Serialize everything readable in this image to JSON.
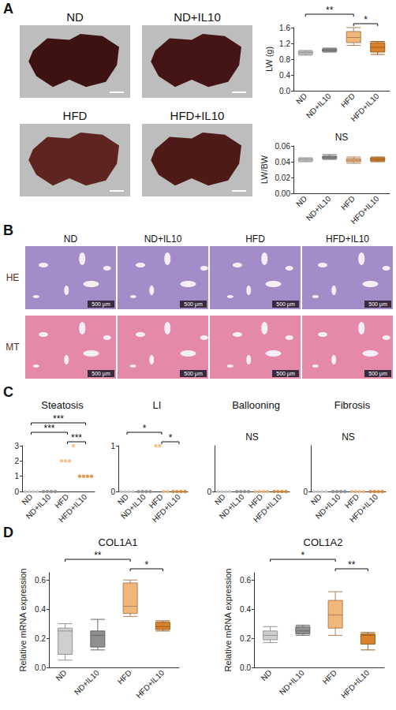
{
  "panel_labels": [
    "A",
    "B",
    "C",
    "D"
  ],
  "photos_A": {
    "labels": [
      "ND",
      "ND+IL10",
      "HFD",
      "HFD+IL10"
    ]
  },
  "histology_B": {
    "columns": [
      "ND",
      "ND+IL10",
      "HFD",
      "HFD+IL10"
    ],
    "rows": [
      "HE",
      "MT"
    ],
    "scale_bar": "500 μm"
  },
  "chart_data": [
    {
      "type": "boxplot",
      "ylabel": "LW (g)",
      "categories": [
        "ND",
        "ND+IL10",
        "HFD",
        "HFD+IL10"
      ],
      "values": [
        [
          0.9,
          0.93,
          0.97,
          1.0,
          1.02
        ],
        [
          0.98,
          1.0,
          1.02,
          1.06,
          1.08
        ],
        [
          1.15,
          1.22,
          1.35,
          1.5,
          1.6
        ],
        [
          0.92,
          0.98,
          1.1,
          1.22,
          1.25
        ]
      ],
      "colors": [
        "#cfcfcf",
        "#8f8f8f",
        "#f2b57a",
        "#d9822b"
      ],
      "ylim": [
        0,
        1.6
      ],
      "yticks": [
        {
          "value": 0,
          "label": "0.0"
        },
        {
          "value": 0.4,
          "label": "0.4"
        },
        {
          "value": 0.8,
          "label": "0.8"
        },
        {
          "value": 1.2,
          "label": "1.2"
        },
        {
          "value": 1.6,
          "label": "1.6"
        }
      ],
      "annotations": [
        {
          "from": "ND",
          "to": "HFD",
          "text": "**"
        },
        {
          "from": "HFD",
          "to": "HFD+IL10",
          "text": "*"
        }
      ],
      "grid": false
    },
    {
      "type": "boxplot",
      "ylabel": "LW/BW",
      "categories": [
        "ND",
        "ND+IL10",
        "HFD",
        "HFD+IL10"
      ],
      "values": [
        [
          0.04,
          0.041,
          0.043,
          0.044,
          0.045
        ],
        [
          0.043,
          0.044,
          0.046,
          0.047,
          0.049
        ],
        [
          0.038,
          0.04,
          0.042,
          0.044,
          0.046
        ],
        [
          0.04,
          0.041,
          0.043,
          0.045,
          0.046
        ]
      ],
      "colors": [
        "#cfcfcf",
        "#8f8f8f",
        "#f2b57a",
        "#d9822b"
      ],
      "ylim": [
        0,
        0.06
      ],
      "yticks": [
        {
          "value": 0,
          "label": "0.00"
        },
        {
          "value": 0.02,
          "label": "0.02"
        },
        {
          "value": 0.04,
          "label": "0.04"
        },
        {
          "value": 0.06,
          "label": "0.06"
        }
      ],
      "annotations": [
        {
          "text": "NS"
        }
      ],
      "grid": false
    },
    {
      "type": "scatter",
      "title": "Steatosis",
      "categories": [
        "ND",
        "ND+IL10",
        "HFD",
        "HFD+IL10"
      ],
      "values": [
        [
          0,
          0,
          0,
          0
        ],
        [
          0,
          0,
          0,
          0
        ],
        [
          2,
          2,
          2,
          3
        ],
        [
          1,
          1,
          1,
          1
        ]
      ],
      "colors": [
        "#cfcfcf",
        "#8f8f8f",
        "#f2b57a",
        "#d9822b"
      ],
      "ylim": [
        0,
        3
      ],
      "yticks": [
        0,
        1,
        2,
        3
      ],
      "annotations": [
        {
          "from": "ND",
          "to": "HFD+IL10",
          "text": "***"
        },
        {
          "from": "ND",
          "to": "HFD",
          "text": "***"
        },
        {
          "from": "HFD",
          "to": "HFD+IL10",
          "text": "***"
        }
      ],
      "grid": false
    },
    {
      "type": "scatter",
      "title": "LI",
      "categories": [
        "ND",
        "ND+IL10",
        "HFD",
        "HFD+IL10"
      ],
      "values": [
        [
          0,
          0,
          0,
          0
        ],
        [
          0,
          0,
          0,
          0
        ],
        [
          1,
          1,
          0,
          0
        ],
        [
          0,
          0,
          0,
          0
        ]
      ],
      "colors": [
        "#cfcfcf",
        "#8f8f8f",
        "#f2b57a",
        "#d9822b"
      ],
      "ylim": [
        0,
        1
      ],
      "yticks": [
        0,
        1
      ],
      "annotations": [
        {
          "from": "ND",
          "to": "HFD",
          "text": "*"
        },
        {
          "from": "HFD",
          "to": "HFD+IL10",
          "text": "*"
        }
      ],
      "grid": false
    },
    {
      "type": "scatter",
      "title": "Ballooning",
      "categories": [
        "ND",
        "ND+IL10",
        "HFD",
        "HFD+IL10"
      ],
      "values": [
        [
          0,
          0,
          0,
          0
        ],
        [
          0,
          0,
          0,
          0
        ],
        [
          0,
          0,
          0,
          0
        ],
        [
          0,
          0,
          0,
          0
        ]
      ],
      "colors": [
        "#cfcfcf",
        "#8f8f8f",
        "#f2b57a",
        "#d9822b"
      ],
      "ylim": [
        0,
        1
      ],
      "yticks": [
        0
      ],
      "annotations": [
        {
          "text": "NS"
        }
      ],
      "grid": false
    },
    {
      "type": "scatter",
      "title": "Fibrosis",
      "categories": [
        "ND",
        "ND+IL10",
        "HFD",
        "HFD+IL10"
      ],
      "values": [
        [
          0,
          0,
          0,
          0
        ],
        [
          0,
          0,
          0,
          0
        ],
        [
          0,
          0,
          0,
          0
        ],
        [
          0,
          0,
          0,
          0
        ]
      ],
      "colors": [
        "#cfcfcf",
        "#8f8f8f",
        "#f2b57a",
        "#d9822b"
      ],
      "ylim": [
        0,
        1
      ],
      "yticks": [
        0
      ],
      "annotations": [
        {
          "text": "NS"
        }
      ],
      "grid": false
    },
    {
      "type": "boxplot",
      "title": "COL1A1",
      "ylabel": "Relative mRNA expression",
      "categories": [
        "ND",
        "ND+IL10",
        "HFD",
        "HFD+IL10"
      ],
      "values": [
        [
          0.05,
          0.09,
          0.25,
          0.27,
          0.3
        ],
        [
          0.12,
          0.14,
          0.22,
          0.25,
          0.33
        ],
        [
          0.35,
          0.37,
          0.42,
          0.58,
          0.6
        ],
        [
          0.25,
          0.26,
          0.28,
          0.31,
          0.32
        ]
      ],
      "colors": [
        "#cfcfcf",
        "#8f8f8f",
        "#f2b57a",
        "#d9822b"
      ],
      "ylim": [
        0,
        0.65
      ],
      "yticks": [
        {
          "value": 0,
          "label": "0.0"
        },
        {
          "value": 0.2,
          "label": "0.2"
        },
        {
          "value": 0.4,
          "label": "0.4"
        },
        {
          "value": 0.6,
          "label": "0.6"
        }
      ],
      "annotations": [
        {
          "from": "ND",
          "to": "HFD",
          "text": "**"
        },
        {
          "from": "HFD",
          "to": "HFD+IL10",
          "text": "*"
        }
      ],
      "grid": false
    },
    {
      "type": "boxplot",
      "title": "COL1A2",
      "ylabel": "Relative mRNA expression",
      "categories": [
        "ND",
        "ND+IL10",
        "HFD",
        "HFD+IL10"
      ],
      "values": [
        [
          0.17,
          0.19,
          0.22,
          0.25,
          0.28
        ],
        [
          0.22,
          0.23,
          0.25,
          0.28,
          0.29
        ],
        [
          0.22,
          0.27,
          0.36,
          0.46,
          0.52
        ],
        [
          0.12,
          0.16,
          0.22,
          0.23,
          0.24
        ]
      ],
      "colors": [
        "#cfcfcf",
        "#8f8f8f",
        "#f2b57a",
        "#d9822b"
      ],
      "ylim": [
        0,
        0.65
      ],
      "yticks": [
        {
          "value": 0,
          "label": "0.0"
        },
        {
          "value": 0.2,
          "label": "0.2"
        },
        {
          "value": 0.4,
          "label": "0.4"
        },
        {
          "value": 0.6,
          "label": "0.6"
        }
      ],
      "annotations": [
        {
          "from": "ND",
          "to": "HFD",
          "text": "*"
        },
        {
          "from": "HFD",
          "to": "HFD+IL10",
          "text": "**"
        }
      ],
      "grid": false
    }
  ]
}
